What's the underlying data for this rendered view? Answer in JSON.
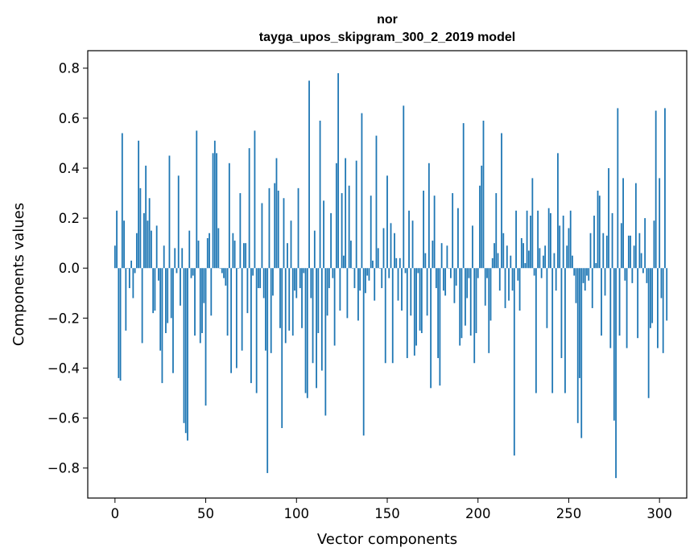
{
  "chart_data": {
    "type": "bar",
    "title": "nor",
    "subtitle": "tayga_upos_skipgram_300_2_2019 model",
    "xlabel": "Vector components",
    "ylabel": "Components values",
    "xlim": [
      -15,
      315
    ],
    "ylim": [
      -0.92,
      0.87
    ],
    "xticks": [
      0,
      50,
      100,
      150,
      200,
      250,
      300
    ],
    "xtick_labels": [
      "0",
      "50",
      "100",
      "150",
      "200",
      "250",
      "300"
    ],
    "yticks": [
      -0.8,
      -0.6,
      -0.4,
      -0.2,
      0.0,
      0.2,
      0.4,
      0.6,
      0.8
    ],
    "ytick_labels": [
      "−0.8",
      "−0.6",
      "−0.4",
      "−0.2",
      "0.0",
      "0.2",
      "0.4",
      "0.6",
      "0.8"
    ],
    "bar_color": "#1f77b4",
    "values": [
      0.09,
      0.23,
      -0.44,
      -0.45,
      0.54,
      0.19,
      -0.25,
      0.0,
      -0.08,
      0.03,
      -0.12,
      -0.02,
      0.14,
      0.51,
      0.32,
      -0.3,
      0.22,
      0.41,
      0.19,
      0.28,
      0.15,
      -0.18,
      -0.17,
      0.17,
      -0.05,
      -0.33,
      -0.46,
      0.09,
      -0.26,
      -0.22,
      0.45,
      -0.2,
      -0.42,
      0.08,
      -0.02,
      0.37,
      -0.15,
      0.08,
      -0.62,
      -0.66,
      -0.69,
      0.15,
      -0.04,
      -0.03,
      -0.27,
      0.55,
      0.11,
      -0.3,
      -0.26,
      -0.14,
      -0.55,
      0.12,
      0.14,
      -0.19,
      0.46,
      0.51,
      0.46,
      0.16,
      0.0,
      -0.02,
      -0.04,
      -0.07,
      -0.27,
      0.42,
      -0.42,
      0.14,
      0.11,
      -0.4,
      0.0,
      0.3,
      -0.33,
      0.1,
      0.1,
      -0.18,
      0.48,
      -0.46,
      -0.03,
      0.55,
      -0.5,
      -0.08,
      -0.08,
      0.26,
      -0.12,
      -0.33,
      -0.82,
      0.32,
      -0.34,
      -0.11,
      0.34,
      0.44,
      0.31,
      -0.24,
      -0.64,
      0.28,
      -0.3,
      0.1,
      -0.25,
      0.19,
      -0.27,
      -0.09,
      -0.12,
      0.32,
      -0.08,
      -0.24,
      -0.02,
      -0.5,
      -0.52,
      0.75,
      -0.12,
      -0.38,
      0.15,
      -0.48,
      -0.26,
      0.59,
      -0.41,
      0.27,
      -0.59,
      -0.19,
      -0.08,
      0.22,
      -0.04,
      -0.31,
      0.42,
      0.78,
      -0.17,
      0.3,
      0.05,
      0.44,
      -0.2,
      0.33,
      0.11,
      0.0,
      -0.08,
      0.43,
      -0.21,
      -0.09,
      0.62,
      -0.67,
      -0.1,
      -0.03,
      -0.05,
      0.29,
      0.03,
      -0.13,
      0.53,
      0.08,
      0.0,
      -0.08,
      0.16,
      -0.38,
      0.37,
      -0.04,
      0.18,
      -0.38,
      0.14,
      0.04,
      -0.13,
      0.04,
      -0.17,
      0.65,
      -0.02,
      -0.36,
      0.23,
      -0.19,
      0.19,
      -0.35,
      -0.31,
      -0.02,
      -0.25,
      -0.26,
      0.31,
      0.06,
      -0.19,
      0.42,
      -0.48,
      0.11,
      0.29,
      -0.08,
      -0.36,
      -0.47,
      0.1,
      -0.09,
      -0.11,
      0.09,
      0.0,
      -0.04,
      0.3,
      -0.14,
      -0.07,
      0.24,
      -0.31,
      -0.28,
      0.58,
      -0.23,
      -0.12,
      -0.04,
      -0.27,
      0.17,
      -0.38,
      -0.26,
      -0.04,
      0.33,
      0.41,
      0.59,
      -0.15,
      -0.04,
      -0.34,
      -0.21,
      0.04,
      0.1,
      0.3,
      0.06,
      -0.09,
      0.54,
      0.14,
      -0.16,
      0.09,
      -0.13,
      0.05,
      -0.09,
      -0.75,
      0.23,
      -0.05,
      -0.17,
      0.12,
      0.1,
      0.02,
      0.23,
      0.07,
      0.21,
      0.36,
      -0.03,
      -0.5,
      0.23,
      0.08,
      -0.04,
      0.05,
      0.09,
      -0.24,
      0.24,
      0.22,
      -0.5,
      0.06,
      -0.09,
      0.46,
      0.17,
      -0.36,
      0.21,
      -0.5,
      0.09,
      0.16,
      0.23,
      0.05,
      -0.03,
      -0.14,
      -0.62,
      -0.44,
      -0.68,
      -0.06,
      -0.09,
      -0.03,
      -0.05,
      0.14,
      -0.16,
      0.21,
      0.02,
      0.31,
      0.29,
      -0.27,
      0.14,
      -0.11,
      0.13,
      0.4,
      -0.32,
      0.22,
      -0.61,
      -0.84,
      0.64,
      -0.27,
      0.18,
      0.36,
      -0.05,
      -0.32,
      0.13,
      0.13,
      -0.06,
      0.09,
      0.34,
      -0.28,
      0.14,
      0.06,
      -0.02,
      0.2,
      -0.06,
      -0.52,
      -0.24,
      -0.22,
      0.19,
      0.63,
      -0.32,
      0.36,
      -0.12,
      -0.34,
      0.64,
      -0.21
    ]
  }
}
